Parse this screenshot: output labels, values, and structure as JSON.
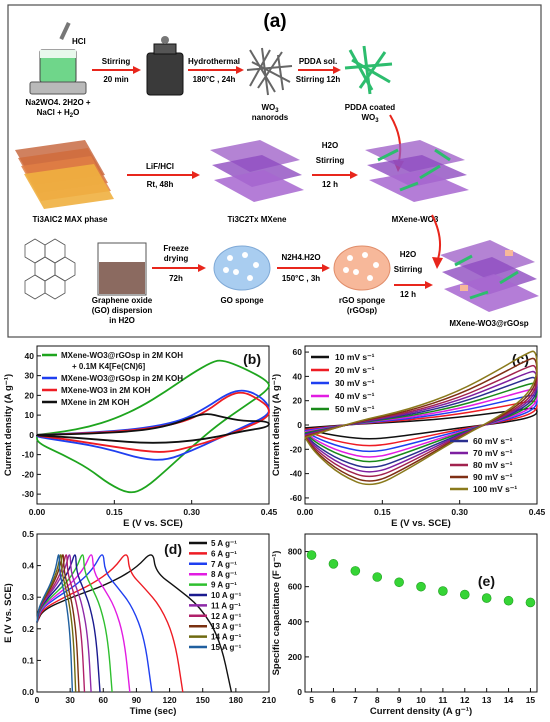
{
  "panel_a": {
    "label": "(a)",
    "row1": {
      "hcl": "HCl",
      "reagents_line1": "Na",
      "reagents_line1_rest": "WO",
      "reagents_formula": "Na2WO4. 2H2O +",
      "reagents_line2": "NaCl + H",
      "reagents_line2_rest": "O",
      "arrow1_top": "Stirring",
      "arrow1_bottom": "20 min",
      "arrow2_top": "Hydrothermal",
      "arrow2_bottom": "180°C , 24h",
      "wo3_nanorods_line1": "WO",
      "wo3_nanorods_line2": "nanorods",
      "arrow3_top": "PDDA sol.",
      "arrow3_bottom": "Stirring 12h",
      "pdda_line1": "PDDA coated",
      "pdda_line2": "WO"
    },
    "row2": {
      "max_phase": "Ti",
      "max_phase_full": "Ti3AlC2 MAX phase",
      "arrow_top": "LiF/HCl",
      "arrow_bottom": "Rt, 48h",
      "mxene": "Ti3C2Tx MXene",
      "h2o": "H2O",
      "stir1": "Stirring",
      "stir2": "12 h",
      "product": "MXene-WO3"
    },
    "row3": {
      "go_line1": "Graphene oxide",
      "go_line2": "(GO) dispersion",
      "go_line3": "in H2O",
      "arrow1_top": "Freeze",
      "arrow1_mid": "drying",
      "arrow1_bottom": "72h",
      "go_sponge": "GO sponge",
      "arrow2_top": "N2H4.H2O",
      "arrow2_bottom": "150°C , 3h",
      "rgo_line1": "rGO sponge",
      "rgo_line2": "(rGOsp)",
      "h2o": "H2O",
      "stir1": "Stirring",
      "stir2": "12 h",
      "product": "MXene-WO3@rGOsp"
    },
    "colors": {
      "arrow": "#e8261c",
      "mxene": "#9b59c6",
      "wo3": "#2dbd6e",
      "sponge": "#a9cdf0",
      "rgo": "#f7b89a"
    }
  },
  "chart_data": [
    {
      "panel": "(b)",
      "type": "line",
      "xlabel": "E (V vs. SCE)",
      "ylabel": "Current density (A g⁻¹)",
      "xlim": [
        0.0,
        0.45
      ],
      "ylim": [
        -35,
        45
      ],
      "xticks": [
        "0.00",
        "0.15",
        "0.30",
        "0.45"
      ],
      "yticks": [
        "-30",
        "-20",
        "-10",
        "0",
        "10",
        "20",
        "30",
        "40"
      ],
      "legend": [
        {
          "name": "MXene-WO3@rGOsp in 2M KOH",
          "name2": "+ 0.1M K4[Fe(CN)6]",
          "color": "#1ea51e"
        },
        {
          "name": "MXene-WO3@rGOsp in 2M KOH",
          "color": "#1f3ff0"
        },
        {
          "name": "MXene-WO3 in 2M KOH",
          "color": "#ee1c24"
        },
        {
          "name": "MXene in 2M KOH",
          "color": "#111111"
        }
      ],
      "series": [
        {
          "color": "#1ea51e",
          "x": [
            0.0,
            0.05,
            0.1,
            0.15,
            0.2,
            0.25,
            0.3,
            0.34,
            0.36,
            0.4,
            0.45,
            0.45,
            0.4,
            0.35,
            0.3,
            0.25,
            0.21,
            0.18,
            0.14,
            0.1,
            0.05,
            0.0
          ],
          "y": [
            0,
            1.5,
            4,
            8,
            14,
            22,
            31,
            37,
            38,
            34,
            27,
            23,
            14,
            5,
            -6,
            -18,
            -27,
            -30,
            -25,
            -17,
            -10,
            -4
          ]
        },
        {
          "color": "#1f3ff0",
          "x": [
            0.0,
            0.1,
            0.2,
            0.28,
            0.33,
            0.37,
            0.4,
            0.43,
            0.45,
            0.45,
            0.4,
            0.35,
            0.3,
            0.25,
            0.2,
            0.15,
            0.1,
            0.05,
            0.0
          ],
          "y": [
            0,
            1,
            3,
            7,
            14,
            21,
            23,
            20,
            15,
            10,
            4,
            -2,
            -8,
            -13,
            -12,
            -8,
            -5,
            -3,
            -1
          ]
        },
        {
          "color": "#ee1c24",
          "x": [
            0.0,
            0.1,
            0.2,
            0.28,
            0.33,
            0.37,
            0.4,
            0.43,
            0.45,
            0.45,
            0.4,
            0.35,
            0.3,
            0.25,
            0.2,
            0.15,
            0.1,
            0.05,
            0.0
          ],
          "y": [
            0,
            0.8,
            2.5,
            6,
            12,
            20,
            22,
            18,
            14,
            9,
            3,
            -2,
            -6,
            -9,
            -8,
            -6,
            -4,
            -2,
            -0.5
          ]
        },
        {
          "color": "#111111",
          "x": [
            0.0,
            0.1,
            0.2,
            0.26,
            0.3,
            0.33,
            0.36,
            0.4,
            0.45,
            0.45,
            0.4,
            0.35,
            0.3,
            0.25,
            0.2,
            0.15,
            0.1,
            0.05,
            0.0
          ],
          "y": [
            0,
            0.5,
            2,
            5,
            9,
            11,
            9,
            7,
            7,
            4,
            2,
            -1,
            -3,
            -4,
            -4,
            -3,
            -2,
            -1,
            -0.3
          ]
        }
      ]
    },
    {
      "panel": "(c)",
      "type": "line",
      "xlabel": "E (V vs. SCE)",
      "ylabel": "Current density (A g⁻¹)",
      "xlim": [
        0.0,
        0.45
      ],
      "ylim": [
        -65,
        65
      ],
      "xticks": [
        "0.00",
        "0.15",
        "0.30",
        "0.45"
      ],
      "yticks": [
        "-60",
        "-40",
        "-20",
        "0",
        "20",
        "40",
        "60"
      ],
      "legend_left": [
        {
          "name": "10 mV s⁻¹",
          "color": "#111111"
        },
        {
          "name": "20 mV s⁻¹",
          "color": "#ee1c24"
        },
        {
          "name": "30 mV s⁻¹",
          "color": "#1f3ff0"
        },
        {
          "name": "40 mV s⁻¹",
          "color": "#e21ce2"
        },
        {
          "name": "50 mV s⁻¹",
          "color": "#1a8a1a"
        }
      ],
      "legend_right": [
        {
          "name": "60 mV s⁻¹",
          "color": "#2a2f8f"
        },
        {
          "name": "70 mV s⁻¹",
          "color": "#7d1fa0"
        },
        {
          "name": "80 mV s⁻¹",
          "color": "#a1224e"
        },
        {
          "name": "90 mV s⁻¹",
          "color": "#7f2f14"
        },
        {
          "name": "100 mV s⁻¹",
          "color": "#8a7a1c"
        }
      ],
      "scan_rates": [
        10,
        20,
        30,
        40,
        50,
        60,
        70,
        80,
        90,
        100
      ],
      "peak_anodic": [
        14,
        20,
        25,
        30,
        35,
        40,
        45,
        50,
        56,
        62
      ],
      "peak_cathodic": [
        -12,
        -18,
        -23,
        -28,
        -32,
        -37,
        -41,
        -45,
        -49,
        -52
      ]
    },
    {
      "panel": "(d)",
      "type": "line",
      "xlabel": "Time (sec)",
      "ylabel": "E (V vs. SCE)",
      "xlim": [
        0,
        210
      ],
      "ylim": [
        0.0,
        0.5
      ],
      "xticks": [
        "0",
        "30",
        "60",
        "90",
        "120",
        "150",
        "180",
        "210"
      ],
      "yticks": [
        "0.0",
        "0.1",
        "0.2",
        "0.3",
        "0.4",
        "0.5"
      ],
      "legend": [
        {
          "name": "5 A g⁻¹",
          "color": "#111111"
        },
        {
          "name": "6 A g⁻¹",
          "color": "#ee1c24"
        },
        {
          "name": "7 A g⁻¹",
          "color": "#1f3ff0"
        },
        {
          "name": "8 A g⁻¹",
          "color": "#e21ce2"
        },
        {
          "name": "9 A g⁻¹",
          "color": "#2fbf2f"
        },
        {
          "name": "10 A g⁻¹",
          "color": "#1a1a8f"
        },
        {
          "name": "11 A g⁻¹",
          "color": "#8e2aa8"
        },
        {
          "name": "12 A g⁻¹",
          "color": "#b0206a"
        },
        {
          "name": "13 A g⁻¹",
          "color": "#7a3010"
        },
        {
          "name": "14 A g⁻¹",
          "color": "#6f6a10"
        },
        {
          "name": "15 A g⁻¹",
          "color": "#1f5f9f"
        }
      ],
      "charge_end": [
        105,
        82,
        60,
        50,
        42,
        35,
        30,
        27,
        24,
        22,
        20
      ],
      "discharge_end": [
        176,
        132,
        104,
        84,
        68,
        57,
        49,
        43,
        38,
        35,
        32
      ]
    },
    {
      "panel": "(e)",
      "type": "scatter",
      "xlabel": "Current density (A g⁻¹)",
      "ylabel": "Specific capacitance (F g⁻¹)",
      "xlim": [
        4.7,
        15.3
      ],
      "ylim": [
        0,
        900
      ],
      "xticks": [
        "5",
        "6",
        "7",
        "8",
        "9",
        "10",
        "11",
        "12",
        "13",
        "14",
        "15"
      ],
      "yticks": [
        "0",
        "200",
        "400",
        "600",
        "800"
      ],
      "x": [
        5,
        6,
        7,
        8,
        9,
        10,
        11,
        12,
        13,
        14,
        15
      ],
      "y": [
        780,
        730,
        690,
        655,
        625,
        600,
        575,
        555,
        535,
        520,
        510
      ],
      "color": "#35d435"
    }
  ],
  "panel_labels": [
    "(b)",
    "(c)",
    "(d)",
    "(e)"
  ]
}
